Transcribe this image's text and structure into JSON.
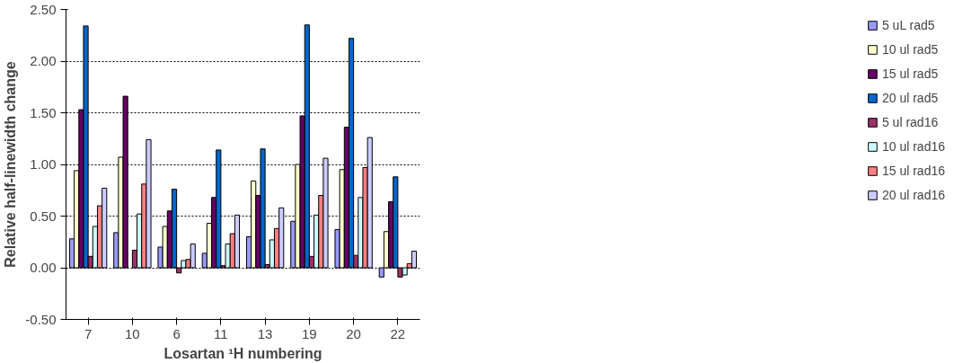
{
  "chart_data": {
    "type": "bar",
    "xlabel": "Losartan ¹H numbering",
    "ylabel": "Relative half-linewidth change",
    "categories": [
      "7",
      "10",
      "6",
      "11",
      "13",
      "19",
      "20",
      "22"
    ],
    "ylim": [
      -0.5,
      2.5
    ],
    "yticks": [
      {
        "value": -0.5,
        "label": "-0.50"
      },
      {
        "value": 0,
        "label": "0.00"
      },
      {
        "value": 0.5,
        "label": "0.50"
      },
      {
        "value": 1,
        "label": "1.00"
      },
      {
        "value": 1.5,
        "label": "1.50"
      },
      {
        "value": 2,
        "label": "2.00"
      },
      {
        "value": 2.5,
        "label": "2.50"
      }
    ],
    "grid": "y",
    "legend": "right",
    "series": [
      {
        "name": "5 uL rad5",
        "color": "#9999ff",
        "values": [
          0.28,
          0.34,
          0.2,
          0.14,
          0.3,
          0.45,
          0.37,
          -0.09
        ]
      },
      {
        "name": "10 ul rad5",
        "color": "#ffffcc",
        "values": [
          0.94,
          1.07,
          0.4,
          0.43,
          0.84,
          1.0,
          0.95,
          0.35
        ]
      },
      {
        "name": "15 ul rad5",
        "color": "#660066",
        "values": [
          1.53,
          1.66,
          0.55,
          0.68,
          0.7,
          1.47,
          1.36,
          0.64
        ]
      },
      {
        "name": "20 ul rad5",
        "color": "#0066cc",
        "values": [
          2.34,
          null,
          0.76,
          1.14,
          1.15,
          2.35,
          2.22,
          0.88
        ]
      },
      {
        "name": "5 ul rad16",
        "color": "#993366",
        "values": [
          0.11,
          0.17,
          -0.05,
          0.02,
          0.03,
          0.11,
          0.12,
          -0.09
        ]
      },
      {
        "name": "10 ul rad16",
        "color": "#ccffff",
        "values": [
          0.4,
          0.52,
          0.07,
          0.23,
          0.27,
          0.51,
          0.68,
          -0.07
        ]
      },
      {
        "name": "15 ul rad16",
        "color": "#ff8080",
        "values": [
          0.6,
          0.81,
          0.08,
          0.33,
          0.38,
          0.7,
          0.97,
          0.04
        ]
      },
      {
        "name": "20 ul rad16",
        "color": "#ccccff",
        "values": [
          0.77,
          1.24,
          0.23,
          0.51,
          0.58,
          1.06,
          1.26,
          0.16
        ]
      }
    ]
  }
}
